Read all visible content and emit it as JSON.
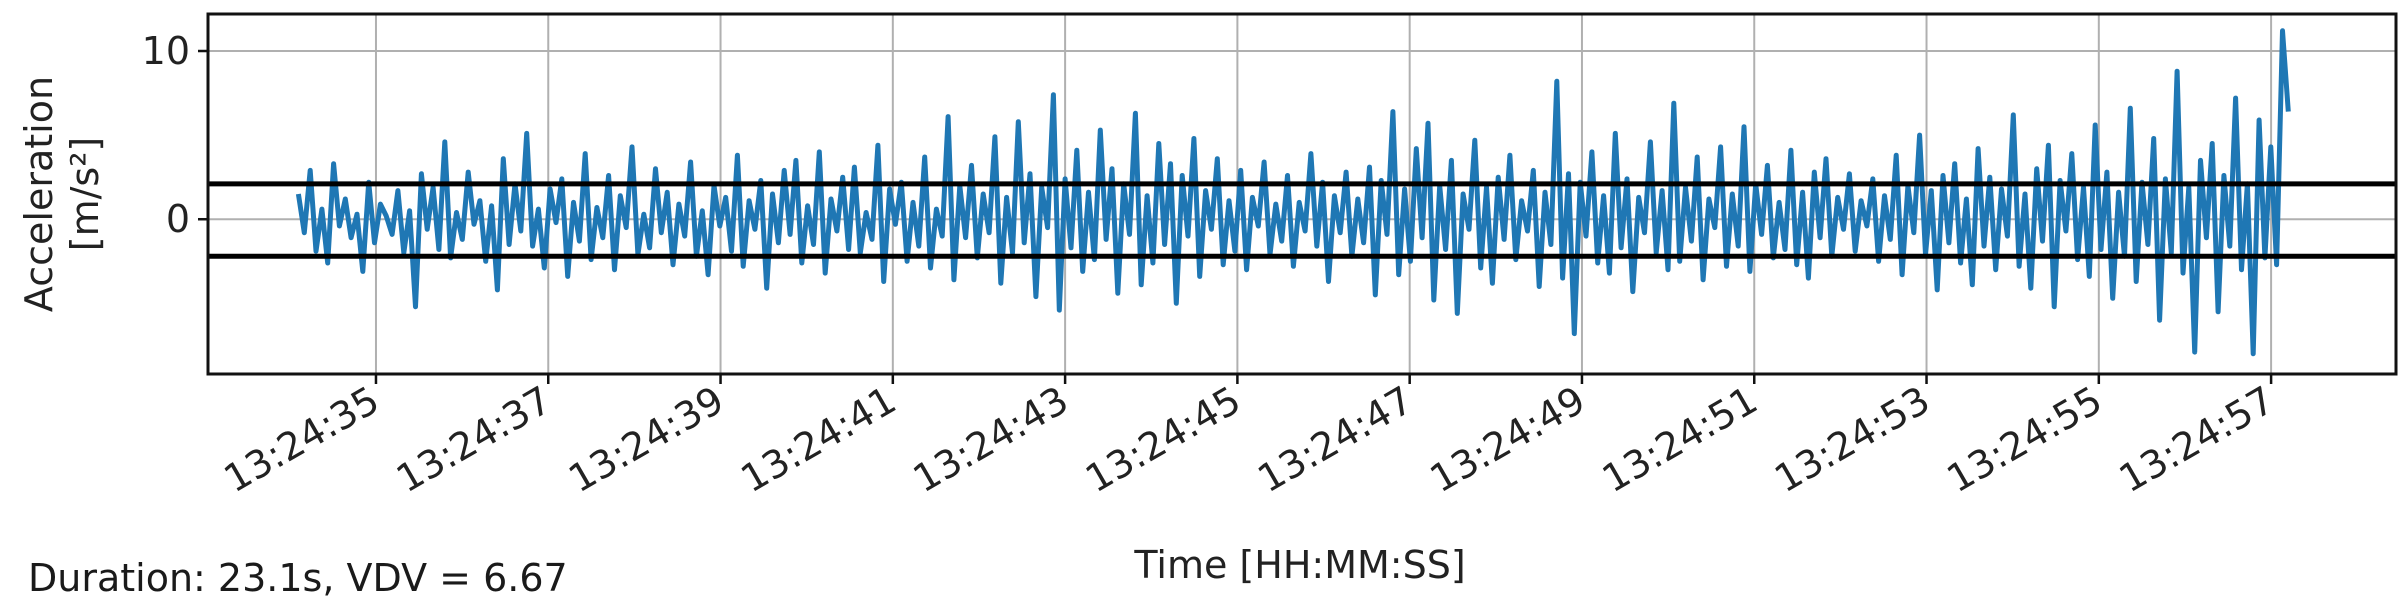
{
  "footer_note": "Duration: 23.1s, VDV = 6.67",
  "chart_data": {
    "type": "line",
    "xlabel": "Time [HH:MM:SS]",
    "ylabel_line1": "Acceleration",
    "ylabel_line2": "[m/s²]",
    "x_ticks": [
      "13:24:35",
      "13:24:37",
      "13:24:39",
      "13:24:41",
      "13:24:43",
      "13:24:45",
      "13:24:47",
      "13:24:49",
      "13:24:51",
      "13:24:53",
      "13:24:55",
      "13:24:57"
    ],
    "y_ticks": [
      "0",
      "10"
    ],
    "x_start": "13:24:34.1",
    "x_end": "13:24:57.2",
    "xlim": [
      "13:24:33.05",
      "13:24:58.45"
    ],
    "ylim": [
      -9.2,
      12.2
    ],
    "threshold_lines": [
      2.1,
      -2.2
    ],
    "grid": true,
    "series_color": "#1f77b4",
    "threshold_color": "#000000",
    "series": [
      {
        "values": [
          1.5,
          -0.8,
          2.9,
          -1.9,
          0.6,
          -2.6,
          3.3,
          -0.4,
          1.2,
          -1.1,
          0.3,
          -3.1,
          2.2,
          -1.4,
          0.9,
          0.2,
          -0.9,
          1.7,
          -2.0,
          0.5,
          -5.2,
          2.7,
          -0.6,
          1.9,
          -1.8,
          4.6,
          -2.3,
          0.4,
          -1.2,
          2.8,
          -0.3,
          1.1,
          -2.5,
          0.8,
          -4.2,
          3.6,
          -1.5,
          2.1,
          -0.7,
          5.1,
          -1.6,
          0.6,
          -2.9,
          1.8,
          -0.2,
          2.4,
          -3.4,
          1.0,
          -1.3,
          3.9,
          -2.4,
          0.7,
          -1.1,
          2.6,
          -3.0,
          1.4,
          -0.5,
          4.3,
          -2.1,
          0.3,
          -1.7,
          3.0,
          -0.8,
          1.6,
          -2.7,
          0.9,
          -1.0,
          3.4,
          -2.2,
          0.5,
          -3.3,
          2.0,
          -0.4,
          1.3,
          -1.9,
          3.8,
          -2.8,
          1.1,
          -0.6,
          2.3,
          -4.1,
          1.5,
          -1.4,
          2.9,
          -0.9,
          3.5,
          -2.6,
          0.8,
          -1.5,
          4.0,
          -3.2,
          1.2,
          -0.7,
          2.5,
          -1.8,
          3.1,
          -2.0,
          0.4,
          -1.2,
          4.4,
          -3.7,
          1.8,
          -0.3,
          2.2,
          -2.5,
          1.0,
          -1.6,
          3.7,
          -2.9,
          0.6,
          -1.0,
          6.1,
          -3.6,
          2.0,
          -1.1,
          3.2,
          -2.3,
          1.5,
          -0.8,
          4.9,
          -3.8,
          1.3,
          -2.0,
          5.8,
          -1.4,
          2.7,
          -4.6,
          1.9,
          -0.5,
          7.4,
          -5.4,
          2.4,
          -1.7,
          4.1,
          -3.1,
          1.6,
          -2.4,
          5.3,
          -1.2,
          3.0,
          -4.4,
          2.1,
          -0.9,
          6.3,
          -3.9,
          1.4,
          -2.6,
          4.5,
          -1.5,
          3.3,
          -5.0,
          2.6,
          -1.0,
          4.8,
          -3.4,
          1.7,
          -0.6,
          3.6,
          -2.7,
          1.1,
          -1.9,
          2.9,
          -3.0,
          1.3,
          -0.4,
          3.4,
          -2.1,
          0.9,
          -1.3,
          2.6,
          -2.8,
          1.0,
          -0.7,
          3.9,
          -1.6,
          2.2,
          -3.7,
          1.4,
          -0.8,
          2.8,
          -2.2,
          1.2,
          -1.4,
          3.1,
          -4.5,
          2.3,
          -0.9,
          6.4,
          -3.3,
          1.8,
          -2.5,
          4.2,
          -1.1,
          5.7,
          -4.8,
          2.0,
          -1.8,
          3.5,
          -5.6,
          1.5,
          -0.6,
          4.7,
          -2.9,
          1.9,
          -3.8,
          2.5,
          -1.2,
          3.8,
          -2.4,
          1.1,
          -0.7,
          2.9,
          -4.0,
          1.6,
          -1.5,
          8.2,
          -3.5,
          2.7,
          -6.8,
          2.2,
          -1.0,
          4.0,
          -2.6,
          1.4,
          -3.2,
          5.1,
          -1.7,
          2.4,
          -4.3,
          1.3,
          -0.8,
          4.6,
          -2.0,
          1.7,
          -3.0,
          6.9,
          -2.5,
          1.9,
          -1.3,
          3.7,
          -3.6,
          1.2,
          -0.5,
          4.3,
          -2.8,
          1.5,
          -1.6,
          5.5,
          -3.1,
          2.1,
          -0.9,
          3.2,
          -2.3,
          1.0,
          -1.8,
          4.1,
          -2.7,
          1.6,
          -3.5,
          2.8,
          -1.1,
          3.6,
          -2.2,
          1.3,
          -0.6,
          2.7,
          -1.9,
          1.1,
          -0.4,
          2.4,
          -2.5,
          1.4,
          -1.2,
          3.8,
          -3.3,
          2.0,
          -0.8,
          5.0,
          -2.1,
          1.7,
          -4.2,
          2.6,
          -1.4,
          3.3,
          -2.6,
          1.2,
          -3.9,
          4.2,
          -1.6,
          2.5,
          -3.0,
          1.8,
          -1.0,
          6.2,
          -2.8,
          1.5,
          -4.1,
          3.0,
          -1.3,
          4.4,
          -5.2,
          2.3,
          -0.7,
          3.9,
          -2.4,
          1.9,
          -3.4,
          5.6,
          -1.8,
          2.8,
          -4.7,
          1.6,
          -2.2,
          6.6,
          -3.7,
          2.2,
          -1.5,
          4.8,
          -6.0,
          2.4,
          -2.0,
          8.8,
          -3.2,
          1.9,
          -7.9,
          3.5,
          -1.1,
          4.5,
          -5.5,
          2.6,
          -1.6,
          7.2,
          -3.0,
          2.1,
          -8.0,
          5.9,
          -2.3,
          4.3,
          -2.7,
          11.2,
          6.4
        ]
      }
    ]
  }
}
